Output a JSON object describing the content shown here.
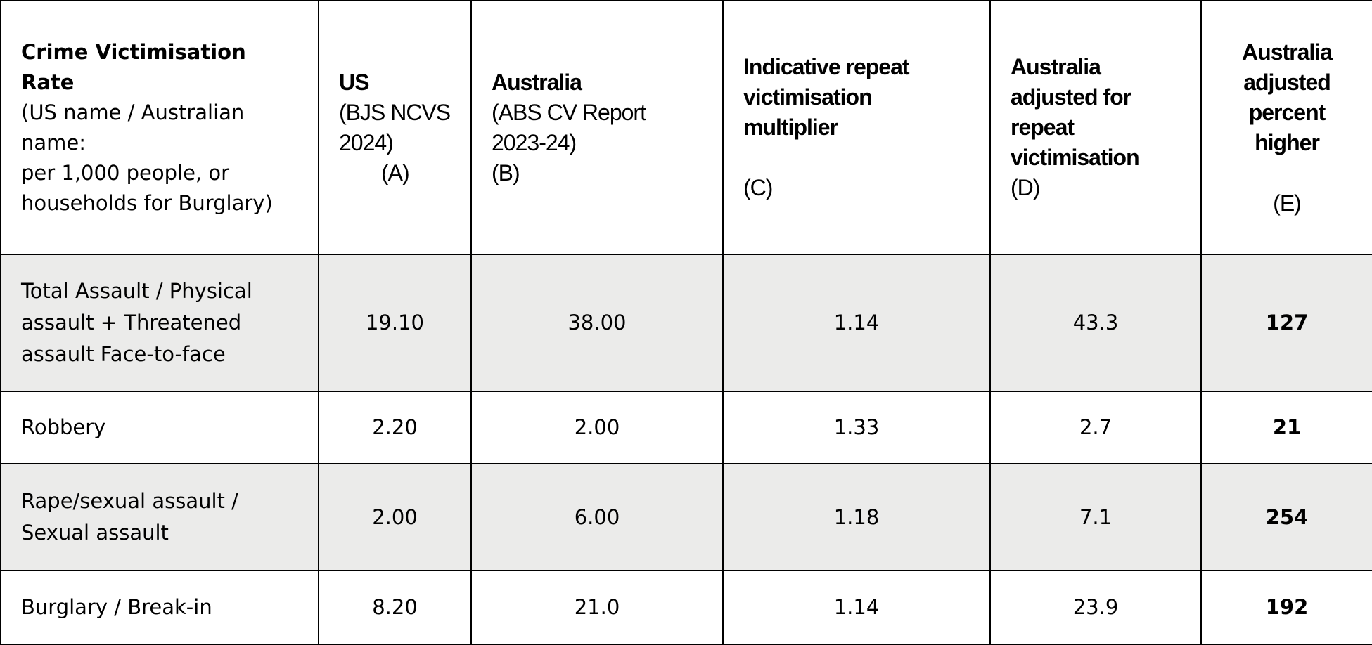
{
  "table": {
    "header": [
      {
        "title": "Crime Victimisation Rate",
        "note": [
          "(US name / Australian name:",
          "per 1,000 people, or households for Burglary)"
        ]
      },
      {
        "title": "US",
        "note": [
          "(BJS NCVS 2024)"
        ],
        "letter": "(A)"
      },
      {
        "title": "Australia",
        "note": [
          "(ABS CV Report 2023-24)"
        ],
        "letter": "(B)"
      },
      {
        "title": "Indicative repeat victimisation multiplier",
        "letter": "(C)"
      },
      {
        "title": "Australia adjusted for repeat victimisation",
        "letter": "(D)"
      },
      {
        "title": "Australia adjusted percent higher",
        "letter": "(E)"
      }
    ],
    "rows": [
      [
        "Total Assault / Physical assault + Threatened assault Face-to-face",
        "19.10",
        "38.00",
        "1.14",
        "43.3",
        "127"
      ],
      [
        "Robbery",
        "2.20",
        "2.00",
        "1.33",
        "2.7",
        "21"
      ],
      [
        "Rape/sexual assault / Sexual assault",
        "2.00",
        "6.00",
        "1.18",
        "7.1",
        "254"
      ],
      [
        "Burglary / Break-in",
        "8.20",
        "21.0",
        "1.14",
        "23.9",
        "192"
      ]
    ]
  }
}
